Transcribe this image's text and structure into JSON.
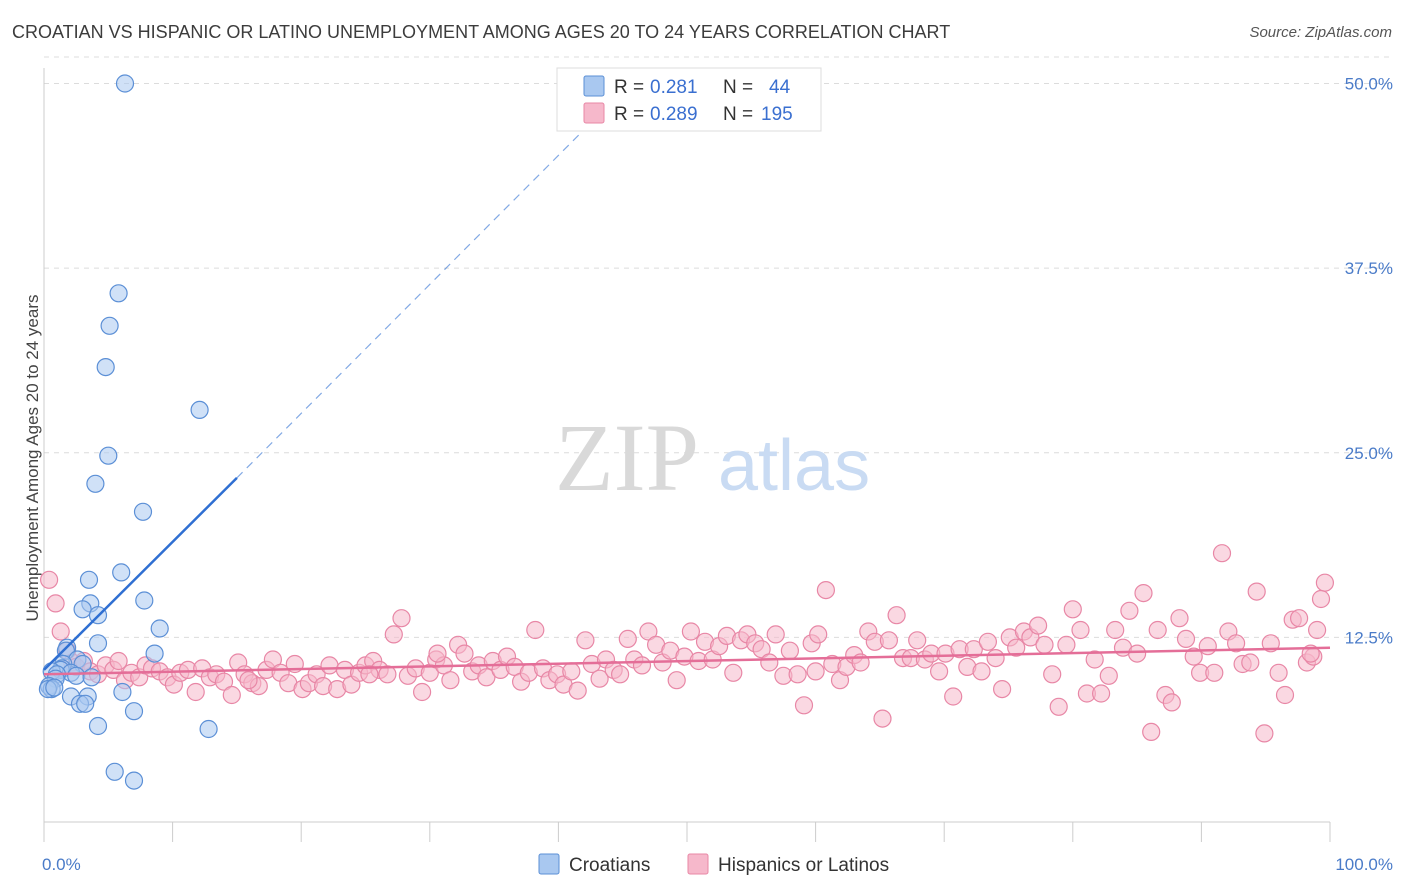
{
  "title": "CROATIAN VS HISPANIC OR LATINO UNEMPLOYMENT AMONG AGES 20 TO 24 YEARS CORRELATION CHART",
  "source": "Source: ZipAtlas.com",
  "watermark": {
    "zip": "ZIP",
    "atlas": "atlas"
  },
  "colors": {
    "croatians_fill": "#a9c8f0",
    "croatians_stroke": "#5b8fd6",
    "croatians_line": "#2f6fd2",
    "hispanics_fill": "#f6b8cb",
    "hispanics_stroke": "#e887a6",
    "hispanics_line": "#e46e98",
    "grid": "#dcdcdc",
    "tick_text": "#4a7bc8"
  },
  "legend": {
    "rows": [
      {
        "r_label": "R =",
        "r_value": "0.281",
        "n_label": "N =",
        "n_value": "44"
      },
      {
        "r_label": "R =",
        "r_value": "0.289",
        "n_label": "N =",
        "n_value": "195"
      }
    ]
  },
  "chart_data": {
    "type": "scatter",
    "title": "CROATIAN VS HISPANIC OR LATINO UNEMPLOYMENT AMONG AGES 20 TO 24 YEARS CORRELATION CHART",
    "xlabel": "",
    "ylabel": "Unemployment Among Ages 20 to 24 years",
    "xlim": [
      0,
      100
    ],
    "ylim": [
      0,
      52
    ],
    "x_ticks": [
      "0.0%",
      "100.0%"
    ],
    "y_ticks": [
      {
        "value": 12.5,
        "label": "12.5%"
      },
      {
        "value": 25.0,
        "label": "25.0%"
      },
      {
        "value": 37.5,
        "label": "37.5%"
      },
      {
        "value": 50.0,
        "label": "50.0%"
      }
    ],
    "grid": true,
    "legend_position": "top-center",
    "series": [
      {
        "name": "Croatians",
        "r": 0.281,
        "n": 44,
        "trend": {
          "x0": 0,
          "y0": 10.3,
          "x1": 15,
          "y1": 23.3,
          "dash_x1": 45,
          "dash_y1": 49.5
        },
        "points": [
          [
            6.3,
            50.0
          ],
          [
            5.8,
            35.8
          ],
          [
            5.1,
            33.6
          ],
          [
            4.8,
            30.8
          ],
          [
            12.1,
            27.9
          ],
          [
            5.0,
            24.8
          ],
          [
            4.0,
            22.9
          ],
          [
            7.7,
            21.0
          ],
          [
            6.0,
            16.9
          ],
          [
            3.5,
            16.4
          ],
          [
            7.8,
            15.0
          ],
          [
            3.6,
            14.8
          ],
          [
            3.0,
            14.4
          ],
          [
            4.2,
            14.0
          ],
          [
            9.0,
            13.1
          ],
          [
            4.2,
            12.1
          ],
          [
            1.8,
            11.8
          ],
          [
            1.7,
            11.6
          ],
          [
            8.6,
            11.4
          ],
          [
            2.6,
            11.0
          ],
          [
            3.0,
            10.7
          ],
          [
            1.5,
            10.7
          ],
          [
            1.4,
            10.4
          ],
          [
            1.3,
            10.3
          ],
          [
            0.6,
            10.2
          ],
          [
            2.1,
            10.1
          ],
          [
            1.0,
            10.0
          ],
          [
            2.5,
            9.9
          ],
          [
            3.7,
            9.8
          ],
          [
            0.9,
            9.7
          ],
          [
            0.4,
            9.2
          ],
          [
            0.6,
            9.0
          ],
          [
            0.3,
            9.0
          ],
          [
            6.1,
            8.8
          ],
          [
            3.4,
            8.5
          ],
          [
            2.1,
            8.5
          ],
          [
            2.8,
            8.0
          ],
          [
            3.2,
            8.0
          ],
          [
            7.0,
            7.5
          ],
          [
            4.2,
            6.5
          ],
          [
            12.8,
            6.3
          ],
          [
            5.5,
            3.4
          ],
          [
            7.0,
            2.8
          ],
          [
            0.8,
            9.1
          ]
        ]
      },
      {
        "name": "Hispanics or Latinos",
        "r": 0.289,
        "n": 195,
        "trend": {
          "x0": 0,
          "y0": 10.0,
          "x1": 100,
          "y1": 11.8
        },
        "points": [
          [
            0.4,
            16.4
          ],
          [
            0.9,
            14.8
          ],
          [
            1.3,
            12.9
          ],
          [
            1.8,
            11.6
          ],
          [
            2.2,
            10.8
          ],
          [
            2.5,
            10.5
          ],
          [
            3.1,
            10.9
          ],
          [
            3.6,
            10.2
          ],
          [
            4.2,
            10.0
          ],
          [
            4.8,
            10.6
          ],
          [
            5.4,
            10.3
          ],
          [
            5.8,
            10.9
          ],
          [
            6.3,
            9.6
          ],
          [
            6.8,
            10.1
          ],
          [
            7.4,
            9.8
          ],
          [
            7.9,
            10.6
          ],
          [
            8.4,
            10.4
          ],
          [
            9.0,
            10.2
          ],
          [
            9.6,
            9.8
          ],
          [
            10.1,
            9.3
          ],
          [
            10.6,
            10.1
          ],
          [
            11.2,
            10.3
          ],
          [
            11.8,
            8.8
          ],
          [
            12.3,
            10.4
          ],
          [
            12.9,
            9.8
          ],
          [
            13.4,
            10.0
          ],
          [
            14.0,
            9.5
          ],
          [
            14.6,
            8.6
          ],
          [
            15.1,
            10.8
          ],
          [
            15.6,
            10.0
          ],
          [
            16.2,
            9.4
          ],
          [
            16.7,
            9.2
          ],
          [
            17.3,
            10.3
          ],
          [
            17.8,
            11.0
          ],
          [
            18.4,
            10.1
          ],
          [
            19.0,
            9.4
          ],
          [
            19.5,
            10.7
          ],
          [
            20.1,
            9.0
          ],
          [
            20.6,
            9.4
          ],
          [
            21.2,
            10.0
          ],
          [
            21.7,
            9.2
          ],
          [
            22.2,
            10.6
          ],
          [
            22.8,
            9.0
          ],
          [
            23.4,
            10.3
          ],
          [
            23.9,
            9.3
          ],
          [
            24.5,
            10.1
          ],
          [
            25.0,
            10.6
          ],
          [
            25.6,
            10.9
          ],
          [
            26.1,
            10.3
          ],
          [
            26.7,
            10.0
          ],
          [
            27.2,
            12.7
          ],
          [
            27.8,
            13.8
          ],
          [
            28.3,
            9.9
          ],
          [
            28.9,
            10.4
          ],
          [
            29.4,
            8.8
          ],
          [
            30.0,
            10.1
          ],
          [
            30.5,
            11.0
          ],
          [
            31.1,
            10.6
          ],
          [
            31.6,
            9.6
          ],
          [
            32.2,
            12.0
          ],
          [
            32.7,
            11.4
          ],
          [
            33.3,
            10.2
          ],
          [
            33.8,
            10.6
          ],
          [
            34.4,
            9.8
          ],
          [
            34.9,
            10.9
          ],
          [
            35.5,
            10.3
          ],
          [
            36.0,
            11.2
          ],
          [
            36.6,
            10.5
          ],
          [
            37.1,
            9.5
          ],
          [
            37.7,
            10.1
          ],
          [
            38.2,
            13.0
          ],
          [
            38.8,
            10.4
          ],
          [
            39.3,
            9.6
          ],
          [
            39.9,
            10.0
          ],
          [
            40.4,
            9.3
          ],
          [
            41.0,
            10.2
          ],
          [
            41.5,
            8.9
          ],
          [
            42.1,
            12.3
          ],
          [
            42.6,
            10.7
          ],
          [
            43.2,
            9.7
          ],
          [
            43.7,
            11.0
          ],
          [
            44.3,
            10.3
          ],
          [
            44.8,
            10.0
          ],
          [
            45.4,
            12.4
          ],
          [
            45.9,
            11.0
          ],
          [
            46.5,
            10.6
          ],
          [
            47.0,
            12.9
          ],
          [
            47.6,
            12.0
          ],
          [
            48.1,
            10.8
          ],
          [
            48.7,
            11.6
          ],
          [
            49.2,
            9.6
          ],
          [
            49.8,
            11.2
          ],
          [
            50.3,
            12.9
          ],
          [
            50.9,
            10.9
          ],
          [
            51.4,
            12.2
          ],
          [
            52.0,
            11.0
          ],
          [
            52.5,
            11.9
          ],
          [
            53.1,
            12.6
          ],
          [
            53.6,
            10.1
          ],
          [
            54.2,
            12.3
          ],
          [
            54.7,
            12.7
          ],
          [
            55.3,
            12.1
          ],
          [
            55.8,
            11.7
          ],
          [
            56.4,
            10.8
          ],
          [
            56.9,
            12.7
          ],
          [
            57.5,
            9.9
          ],
          [
            58.0,
            11.6
          ],
          [
            58.6,
            10.0
          ],
          [
            59.1,
            7.9
          ],
          [
            59.7,
            12.1
          ],
          [
            60.2,
            12.7
          ],
          [
            60.8,
            15.7
          ],
          [
            61.3,
            10.7
          ],
          [
            61.9,
            9.6
          ],
          [
            62.4,
            10.5
          ],
          [
            63.0,
            11.3
          ],
          [
            63.5,
            10.8
          ],
          [
            64.1,
            12.9
          ],
          [
            64.6,
            12.2
          ],
          [
            65.2,
            7.0
          ],
          [
            65.7,
            12.3
          ],
          [
            66.3,
            14.0
          ],
          [
            66.8,
            11.1
          ],
          [
            67.4,
            11.1
          ],
          [
            67.9,
            12.3
          ],
          [
            68.5,
            11.0
          ],
          [
            69.0,
            11.4
          ],
          [
            69.6,
            10.2
          ],
          [
            70.1,
            11.4
          ],
          [
            70.7,
            8.5
          ],
          [
            71.2,
            11.7
          ],
          [
            71.8,
            10.5
          ],
          [
            72.3,
            11.7
          ],
          [
            72.9,
            10.2
          ],
          [
            73.4,
            12.2
          ],
          [
            74.0,
            11.1
          ],
          [
            74.5,
            9.0
          ],
          [
            75.1,
            12.5
          ],
          [
            75.6,
            11.8
          ],
          [
            76.2,
            12.9
          ],
          [
            76.7,
            12.5
          ],
          [
            77.3,
            13.3
          ],
          [
            77.8,
            12.0
          ],
          [
            78.4,
            10.0
          ],
          [
            78.9,
            7.8
          ],
          [
            79.5,
            12.0
          ],
          [
            80.0,
            14.4
          ],
          [
            80.6,
            13.0
          ],
          [
            81.1,
            8.7
          ],
          [
            81.7,
            11.0
          ],
          [
            82.2,
            8.7
          ],
          [
            82.8,
            9.9
          ],
          [
            83.3,
            13.0
          ],
          [
            83.9,
            11.8
          ],
          [
            84.4,
            14.3
          ],
          [
            85.0,
            11.4
          ],
          [
            85.5,
            15.5
          ],
          [
            86.1,
            6.1
          ],
          [
            86.6,
            13.0
          ],
          [
            87.2,
            8.6
          ],
          [
            87.7,
            8.1
          ],
          [
            88.3,
            13.8
          ],
          [
            88.8,
            12.4
          ],
          [
            89.4,
            11.2
          ],
          [
            89.9,
            10.1
          ],
          [
            90.5,
            11.9
          ],
          [
            91.0,
            10.1
          ],
          [
            91.6,
            18.2
          ],
          [
            92.1,
            12.9
          ],
          [
            92.7,
            12.1
          ],
          [
            93.2,
            10.7
          ],
          [
            93.8,
            10.8
          ],
          [
            94.3,
            15.6
          ],
          [
            94.9,
            6.0
          ],
          [
            95.4,
            12.1
          ],
          [
            96.0,
            10.1
          ],
          [
            96.5,
            8.6
          ],
          [
            97.1,
            13.7
          ],
          [
            97.6,
            13.8
          ],
          [
            98.2,
            10.8
          ],
          [
            98.7,
            11.2
          ],
          [
            99.0,
            13.0
          ],
          [
            99.3,
            15.1
          ],
          [
            99.6,
            16.2
          ],
          [
            98.5,
            11.4
          ],
          [
            60.0,
            10.2
          ],
          [
            30.6,
            11.4
          ],
          [
            15.9,
            9.6
          ],
          [
            25.3,
            10.0
          ]
        ]
      }
    ]
  },
  "bottom_legend": [
    "Croatians",
    "Hispanics or Latinos"
  ]
}
